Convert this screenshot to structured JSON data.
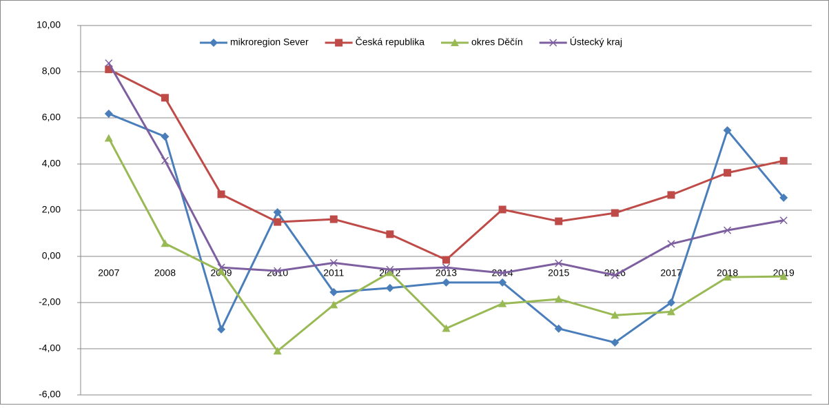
{
  "chart_data": {
    "type": "line",
    "categories": [
      "2007",
      "2008",
      "2009",
      "2010",
      "2011",
      "2012",
      "2013",
      "2014",
      "2015",
      "2016",
      "2017",
      "2018",
      "2019"
    ],
    "series": [
      {
        "name": "mikroregion Sever",
        "color": "#4a7ebb",
        "marker": "diamond",
        "values": [
          6.18,
          5.19,
          -3.16,
          1.91,
          -1.55,
          -1.37,
          -1.13,
          -1.13,
          -3.13,
          -3.73,
          -2.0,
          5.46,
          2.54
        ]
      },
      {
        "name": "Česká republika",
        "color": "#be4b48",
        "marker": "square",
        "values": [
          8.1,
          6.87,
          2.69,
          1.49,
          1.61,
          0.96,
          -0.15,
          2.03,
          1.52,
          1.88,
          2.66,
          3.62,
          4.14
        ]
      },
      {
        "name": "okres Děčín",
        "color": "#98b954",
        "marker": "triangle",
        "values": [
          5.12,
          0.56,
          -0.65,
          -4.1,
          -2.1,
          -0.7,
          -3.12,
          -2.05,
          -1.85,
          -2.55,
          -2.4,
          -0.9,
          -0.87
        ]
      },
      {
        "name": "Ústecký kraj",
        "color": "#7d5fa0",
        "marker": "x",
        "values": [
          8.37,
          4.15,
          -0.48,
          -0.63,
          -0.28,
          -0.57,
          -0.48,
          -0.72,
          -0.3,
          -0.82,
          0.54,
          1.13,
          1.56
        ]
      }
    ],
    "ylim": [
      -6,
      10
    ],
    "yticks": [
      {
        "value": -6,
        "label": "-6,00"
      },
      {
        "value": -4,
        "label": "-4,00"
      },
      {
        "value": -2,
        "label": "-2,00"
      },
      {
        "value": 0,
        "label": "0,00"
      },
      {
        "value": 2,
        "label": "2,00"
      },
      {
        "value": 4,
        "label": "4,00"
      },
      {
        "value": 6,
        "label": "6,00"
      },
      {
        "value": 8,
        "label": "8,00"
      },
      {
        "value": 10,
        "label": "10,00"
      }
    ],
    "grid": true,
    "legend": "top"
  }
}
